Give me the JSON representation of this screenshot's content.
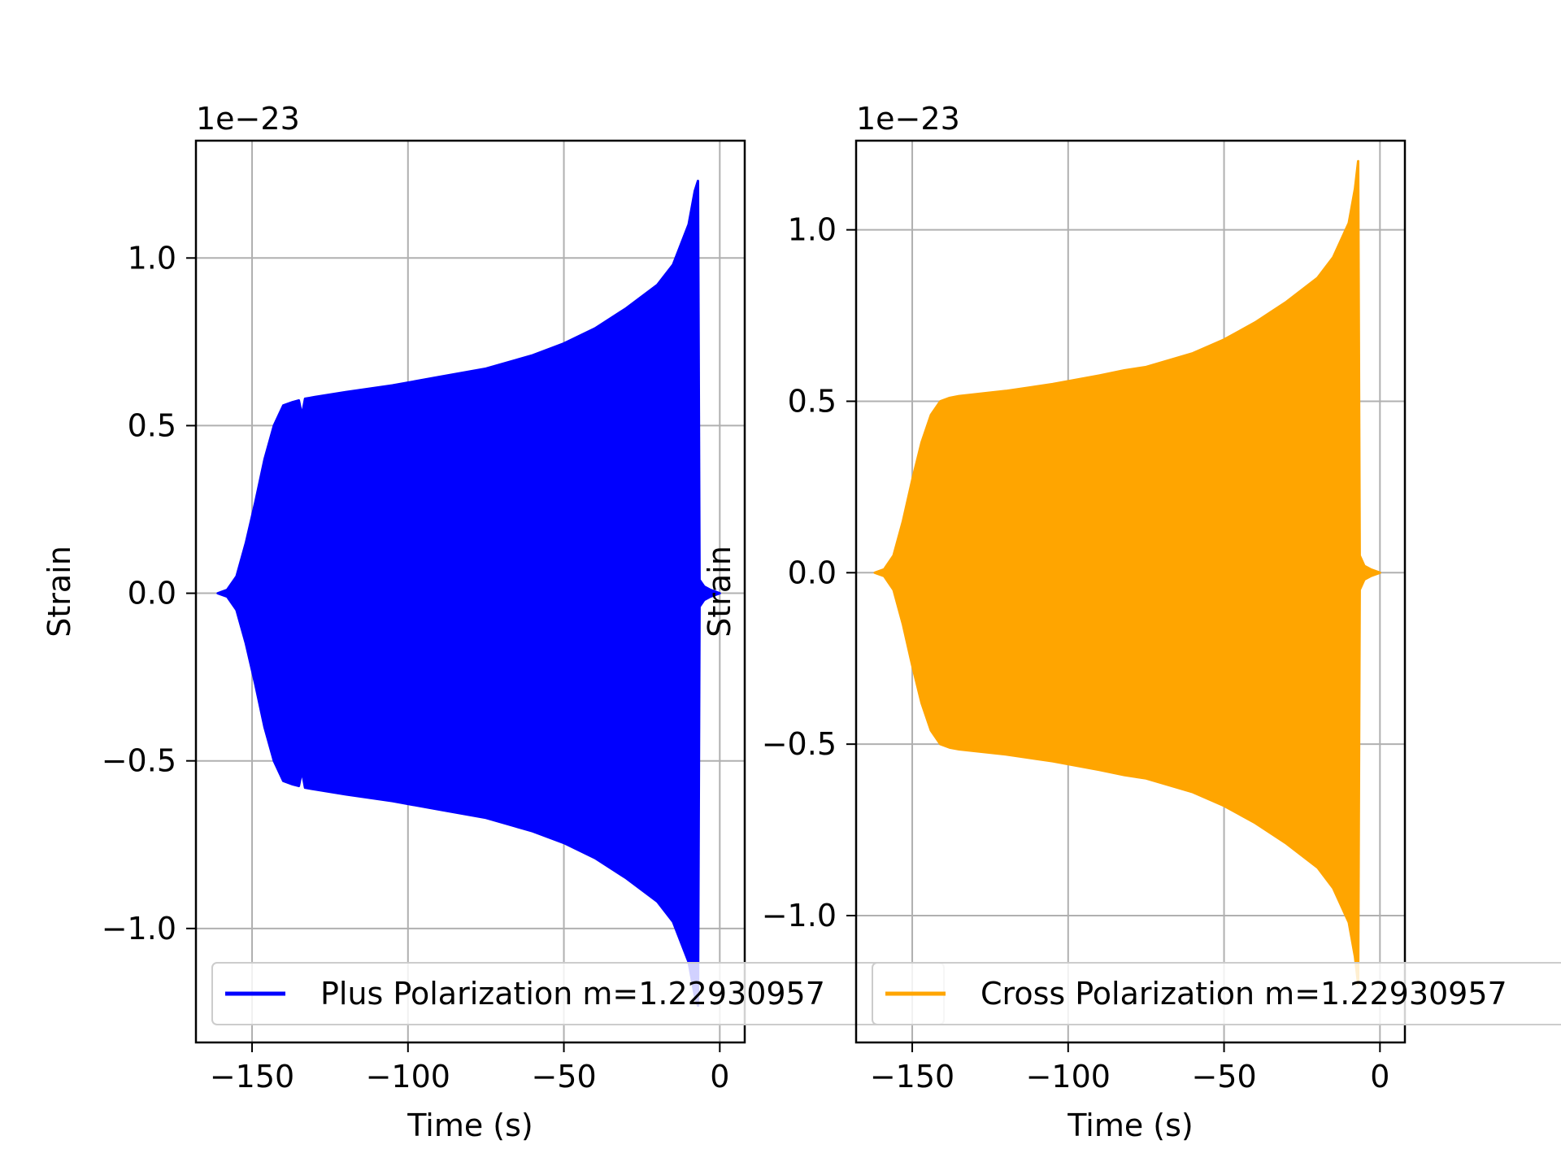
{
  "chart_data": [
    {
      "type": "area",
      "xlabel": "Time (s)",
      "ylabel": "Strain",
      "offset_text": "1e−23",
      "xlim": [
        -168,
        8
      ],
      "ylim": [
        -1.34,
        1.35
      ],
      "x_ticks": [
        -150,
        -100,
        -50,
        0
      ],
      "x_tick_labels": [
        "−150",
        "−100",
        "−50",
        "0"
      ],
      "y_ticks": [
        -1.0,
        -0.5,
        0.0,
        0.5,
        1.0
      ],
      "y_tick_labels": [
        "−1.0",
        "−0.5",
        "0.0",
        "0.5",
        "1.0"
      ],
      "grid": true,
      "legend_position": "lower-left",
      "series": [
        {
          "name": "Plus Polarization m=1.22930957",
          "color": "#0000ff",
          "envelope": {
            "t": [
              -161,
              -158,
              -155,
              -152,
              -149,
              -146,
              -143,
              -140,
              -137,
              -135,
              -134,
              -133,
              -130,
              -120,
              -105,
              -90,
              -75,
              -60,
              -50,
              -40,
              -30,
              -20,
              -15,
              -10,
              -8,
              -7,
              -6.5,
              -5,
              -3,
              0
            ],
            "upper": [
              0.0,
              0.01,
              0.05,
              0.15,
              0.27,
              0.4,
              0.5,
              0.56,
              0.57,
              0.575,
              0.53,
              0.58,
              0.585,
              0.6,
              0.62,
              0.645,
              0.67,
              0.71,
              0.745,
              0.79,
              0.85,
              0.92,
              0.98,
              1.1,
              1.2,
              1.23,
              0.04,
              0.02,
              0.01,
              0.0
            ]
          }
        },
        {
          "name": "Cross Polarization m=1.22930957",
          "color": "#ffa500",
          "envelope": {
            "t": [
              -162,
              -159,
              -156,
              -153,
              -150,
              -147,
              -144,
              -141,
              -138,
              -135,
              -120,
              -105,
              -90,
              -82,
              -75,
              -60,
              -50,
              -40,
              -30,
              -20,
              -15,
              -10,
              -8,
              -7,
              -6.5,
              -5,
              -3,
              0
            ],
            "upper": [
              0.0,
              0.01,
              0.05,
              0.15,
              0.27,
              0.38,
              0.46,
              0.5,
              0.51,
              0.515,
              0.53,
              0.55,
              0.575,
              0.59,
              0.6,
              0.64,
              0.68,
              0.73,
              0.79,
              0.86,
              0.92,
              1.02,
              1.12,
              1.2,
              0.05,
              0.02,
              0.01,
              0.0
            ]
          }
        }
      ]
    }
  ]
}
